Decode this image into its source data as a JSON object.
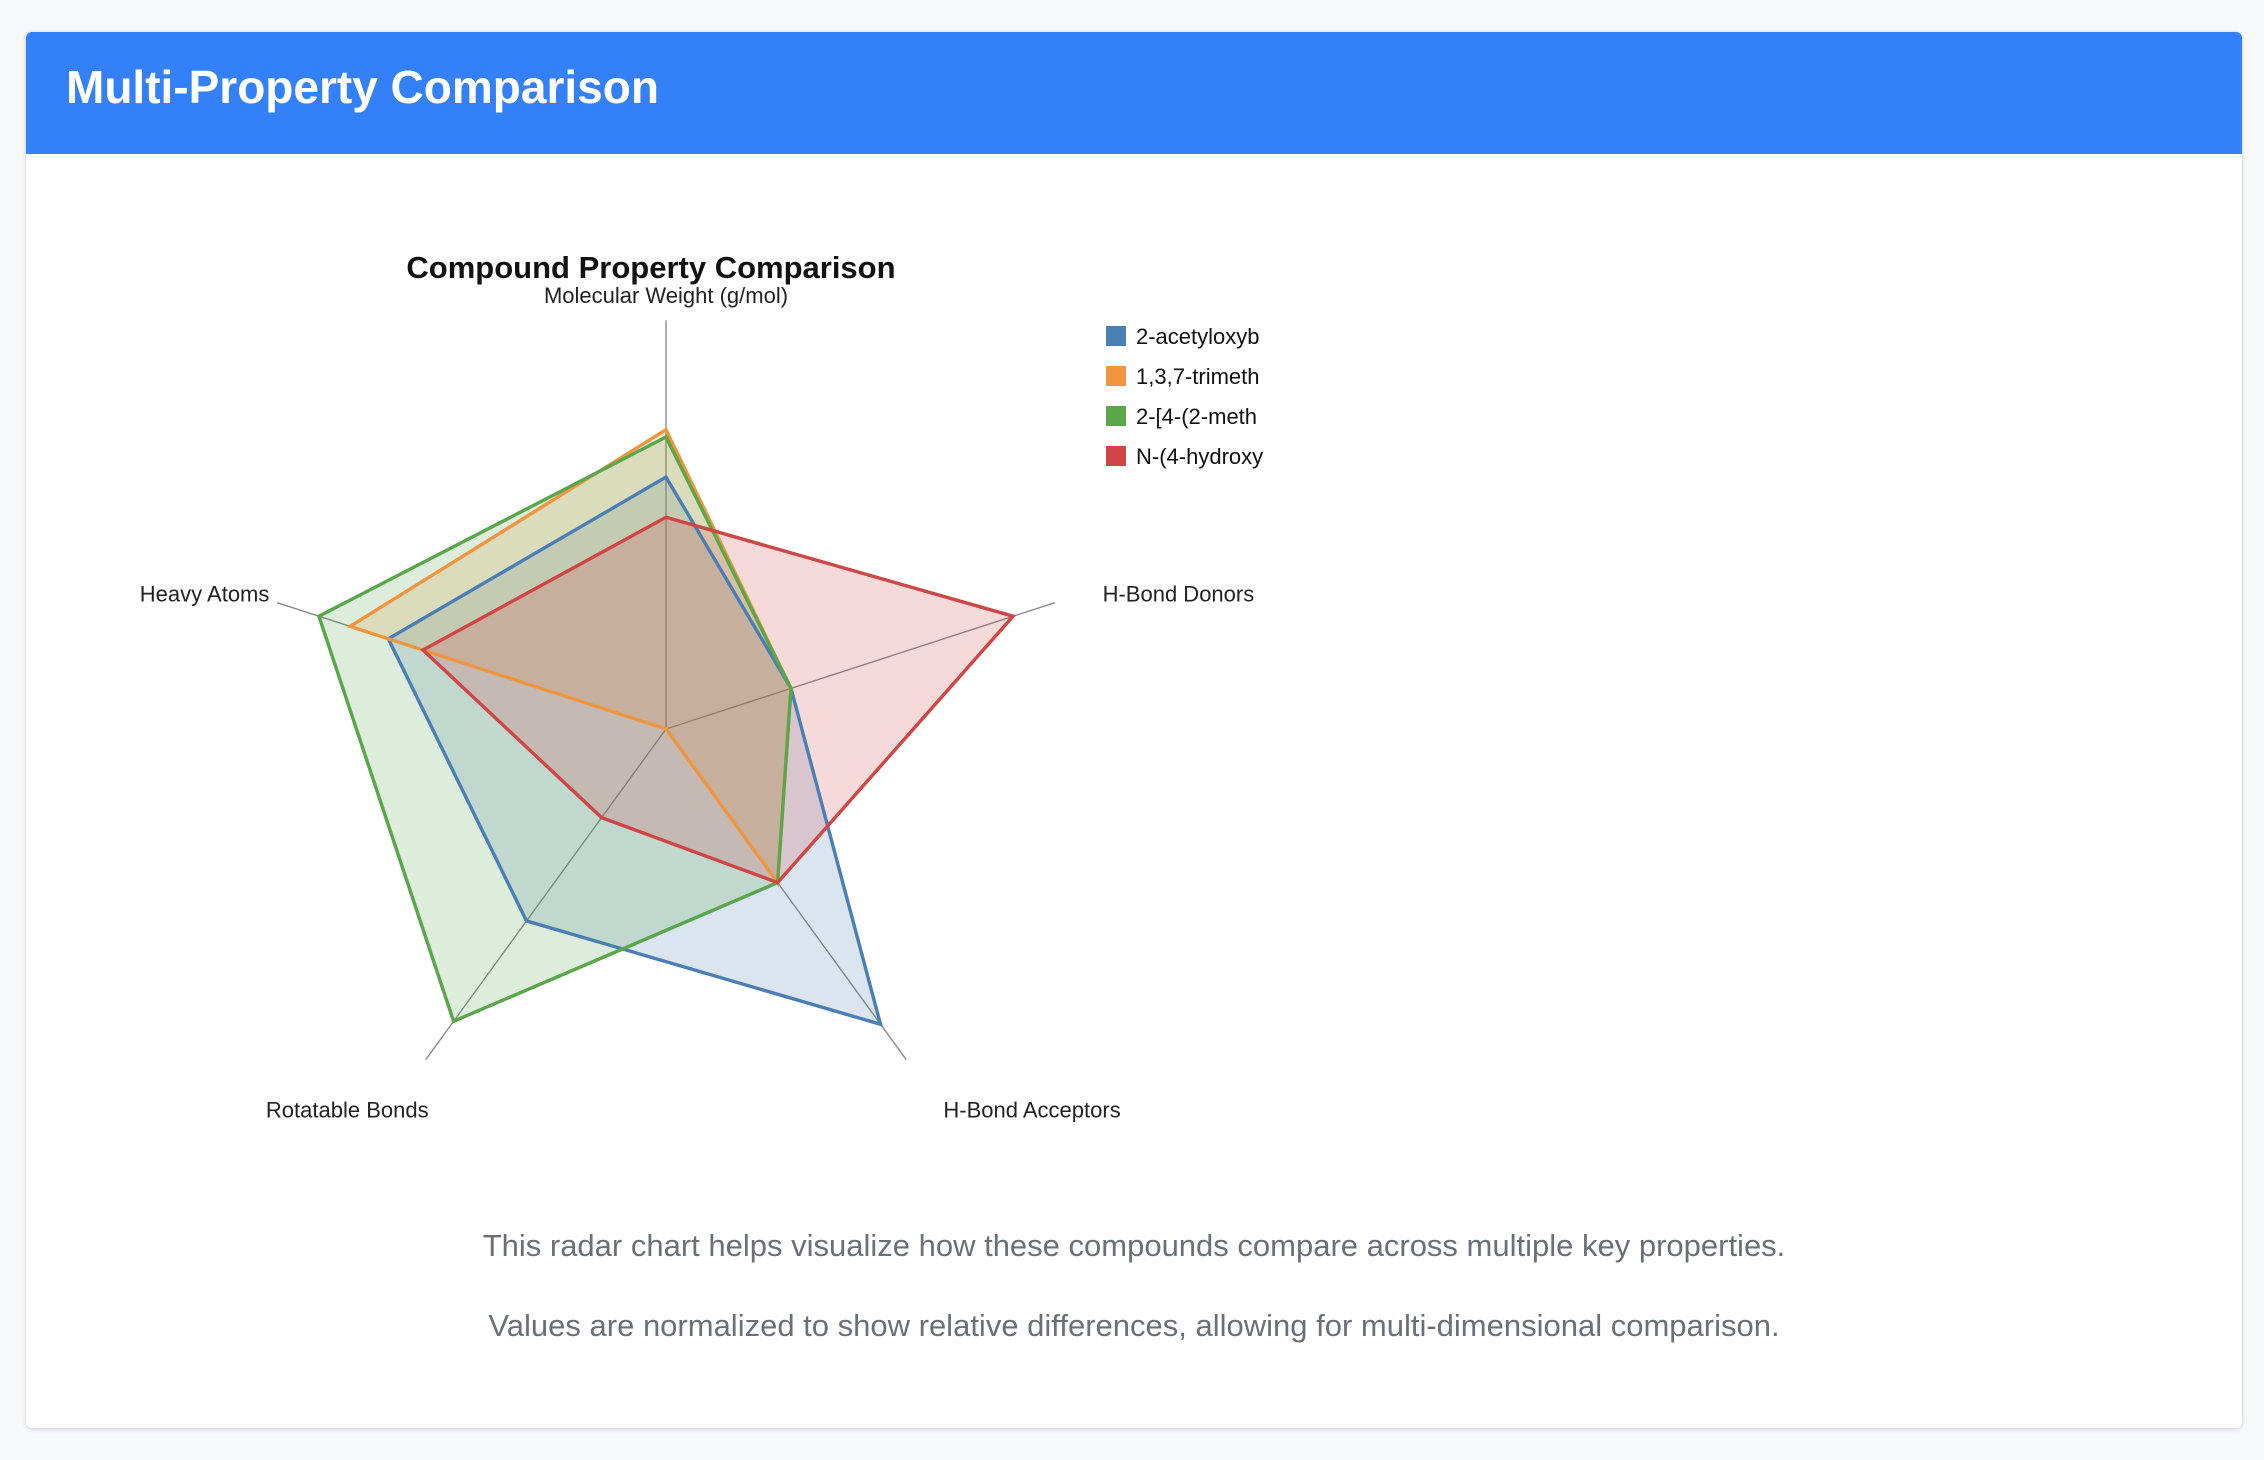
{
  "header": {
    "title": "Multi-Property Comparison"
  },
  "chart_data": {
    "type": "radar",
    "title": "Compound Property Comparison",
    "axes": [
      "Molecular Weight (g/mol)",
      "H-Bond Donors",
      "H-Bond Acceptors",
      "Rotatable Bonds",
      "Heavy Atoms"
    ],
    "range": [
      0,
      1
    ],
    "grid": false,
    "legend_position": "right",
    "series": [
      {
        "name": "2-acetyloxyb",
        "color": "#4a7fb5",
        "values": [
          0.69,
          0.36,
          1.0,
          0.65,
          0.8
        ]
      },
      {
        "name": "1,3,7-trimeth",
        "color": "#f0953f",
        "values": [
          0.82,
          0.36,
          0.52,
          0.0,
          0.91
        ]
      },
      {
        "name": "2-[4-(2-meth",
        "color": "#5aa64b",
        "values": [
          0.8,
          0.36,
          0.52,
          0.99,
          1.0
        ]
      },
      {
        "name": "N-(4-hydroxy",
        "color": "#d04545",
        "values": [
          0.58,
          1.0,
          0.52,
          0.3,
          0.7
        ]
      }
    ]
  },
  "notes": {
    "line1": "This radar chart helps visualize how these compounds compare across multiple key properties.",
    "line2": "Values are normalized to show relative differences, allowing for multi-dimensional comparison."
  }
}
